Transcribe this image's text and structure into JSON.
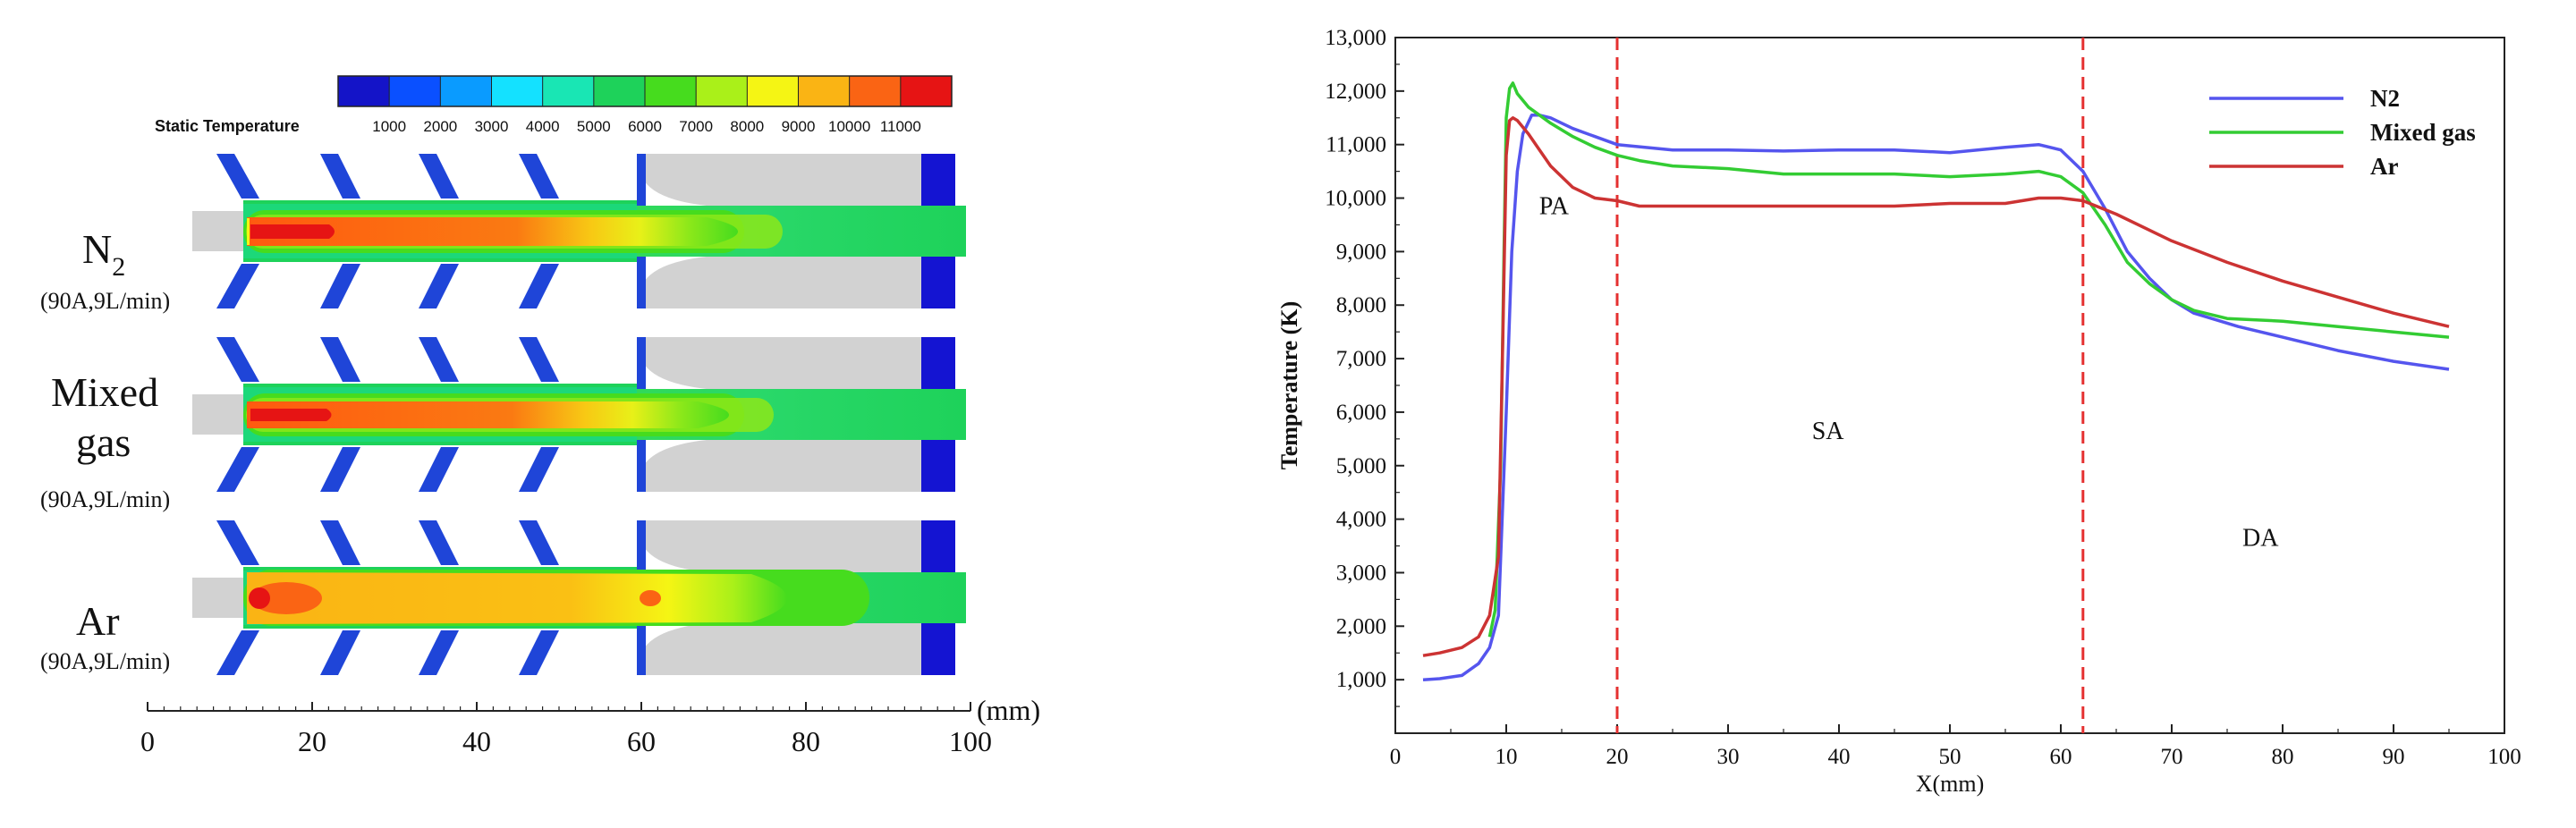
{
  "contour_figure": {
    "scale_title": "Static Temperature",
    "scale_ticks": [
      "1000",
      "2000",
      "3000",
      "4000",
      "5000",
      "6000",
      "7000",
      "8000",
      "9000",
      "10000",
      "11000"
    ],
    "scale_colors": [
      "#1414c8",
      "#0a50ff",
      "#0a9bff",
      "#14e1ff",
      "#19e6b4",
      "#1ed25a",
      "#46dc1e",
      "#aaf019",
      "#f5f514",
      "#fab414",
      "#fa6414",
      "#e61414"
    ],
    "rows": [
      {
        "name": "N",
        "name_sub": "2",
        "condition": "(90A,9L/min)"
      },
      {
        "name_line1": "Mixed",
        "name_line2": "gas",
        "condition": "(90A,9L/min)"
      },
      {
        "name": "Ar",
        "condition": "(90A,9L/min)"
      }
    ],
    "axis_ticks": [
      "0",
      "20",
      "40",
      "60",
      "80",
      "100"
    ],
    "axis_unit": "(mm)"
  },
  "chart_data": {
    "type": "line",
    "title": "",
    "xlabel": "X(mm)",
    "ylabel": "Temperature (K)",
    "xlim": [
      0,
      100
    ],
    "ylim": [
      0,
      13000
    ],
    "x_ticks": [
      0,
      10,
      20,
      30,
      40,
      50,
      60,
      70,
      80,
      90,
      100
    ],
    "y_ticks": [
      1000,
      2000,
      3000,
      4000,
      5000,
      6000,
      7000,
      8000,
      9000,
      10000,
      11000,
      12000,
      13000
    ],
    "y_tick_labels": [
      "1,000",
      "2,000",
      "3,000",
      "4,000",
      "5,000",
      "6,000",
      "7,000",
      "8,000",
      "9,000",
      "10,000",
      "11,000",
      "12,000",
      "13,000"
    ],
    "x_tick_labels": [
      "0",
      "10",
      "20",
      "30",
      "40",
      "50",
      "60",
      "70",
      "80",
      "90",
      "100"
    ],
    "vlines": [
      20,
      62
    ],
    "vline_color": "#e53030",
    "regions": [
      {
        "label": "PA",
        "x": 14.3,
        "y": 9700
      },
      {
        "label": "SA",
        "x": 39,
        "y": 5500
      },
      {
        "label": "DA",
        "x": 78,
        "y": 3500
      }
    ],
    "legend_position": "top-right",
    "series": [
      {
        "name": "N2",
        "color": "#5555ee",
        "points": [
          [
            2.5,
            1000
          ],
          [
            4,
            1020
          ],
          [
            6,
            1080
          ],
          [
            7.5,
            1300
          ],
          [
            8.5,
            1600
          ],
          [
            9.3,
            2200
          ],
          [
            10,
            6000
          ],
          [
            10.5,
            9000
          ],
          [
            11,
            10500
          ],
          [
            11.5,
            11200
          ],
          [
            12.3,
            11550
          ],
          [
            13,
            11550
          ],
          [
            14,
            11500
          ],
          [
            16,
            11300
          ],
          [
            18,
            11150
          ],
          [
            20,
            11000
          ],
          [
            25,
            10900
          ],
          [
            30,
            10900
          ],
          [
            35,
            10880
          ],
          [
            40,
            10900
          ],
          [
            45,
            10900
          ],
          [
            50,
            10850
          ],
          [
            55,
            10950
          ],
          [
            58,
            11000
          ],
          [
            60,
            10900
          ],
          [
            62,
            10500
          ],
          [
            64,
            9800
          ],
          [
            66,
            9000
          ],
          [
            68,
            8500
          ],
          [
            70,
            8100
          ],
          [
            72,
            7850
          ],
          [
            76,
            7600
          ],
          [
            80,
            7400
          ],
          [
            85,
            7150
          ],
          [
            90,
            6950
          ],
          [
            95,
            6800
          ]
        ]
      },
      {
        "name": "Mixed gas",
        "color": "#33cc33",
        "points": [
          [
            8.5,
            1800
          ],
          [
            9,
            2300
          ],
          [
            9.5,
            5000
          ],
          [
            9.8,
            9000
          ],
          [
            10,
            11500
          ],
          [
            10.3,
            12050
          ],
          [
            10.6,
            12150
          ],
          [
            11,
            11950
          ],
          [
            12,
            11700
          ],
          [
            14,
            11400
          ],
          [
            16,
            11150
          ],
          [
            18,
            10950
          ],
          [
            20,
            10800
          ],
          [
            22,
            10700
          ],
          [
            25,
            10600
          ],
          [
            30,
            10550
          ],
          [
            35,
            10450
          ],
          [
            40,
            10450
          ],
          [
            45,
            10450
          ],
          [
            50,
            10400
          ],
          [
            55,
            10450
          ],
          [
            58,
            10500
          ],
          [
            60,
            10400
          ],
          [
            62,
            10100
          ],
          [
            64,
            9500
          ],
          [
            66,
            8800
          ],
          [
            68,
            8400
          ],
          [
            70,
            8100
          ],
          [
            72,
            7900
          ],
          [
            75,
            7750
          ],
          [
            80,
            7700
          ],
          [
            85,
            7600
          ],
          [
            90,
            7500
          ],
          [
            95,
            7400
          ]
        ]
      },
      {
        "name": "Ar",
        "color": "#cc3333",
        "points": [
          [
            2.5,
            1450
          ],
          [
            4,
            1500
          ],
          [
            6,
            1600
          ],
          [
            7.5,
            1800
          ],
          [
            8.5,
            2200
          ],
          [
            9.3,
            3300
          ],
          [
            9.7,
            7500
          ],
          [
            10,
            10800
          ],
          [
            10.3,
            11450
          ],
          [
            10.6,
            11500
          ],
          [
            11,
            11450
          ],
          [
            12,
            11200
          ],
          [
            13,
            10900
          ],
          [
            14,
            10600
          ],
          [
            16,
            10200
          ],
          [
            18,
            10000
          ],
          [
            20,
            9950
          ],
          [
            22,
            9850
          ],
          [
            25,
            9850
          ],
          [
            30,
            9850
          ],
          [
            35,
            9850
          ],
          [
            40,
            9850
          ],
          [
            45,
            9850
          ],
          [
            50,
            9900
          ],
          [
            55,
            9900
          ],
          [
            58,
            10000
          ],
          [
            60,
            10000
          ],
          [
            62,
            9950
          ],
          [
            65,
            9700
          ],
          [
            70,
            9200
          ],
          [
            75,
            8800
          ],
          [
            80,
            8450
          ],
          [
            85,
            8150
          ],
          [
            90,
            7850
          ],
          [
            95,
            7600
          ]
        ]
      }
    ]
  }
}
